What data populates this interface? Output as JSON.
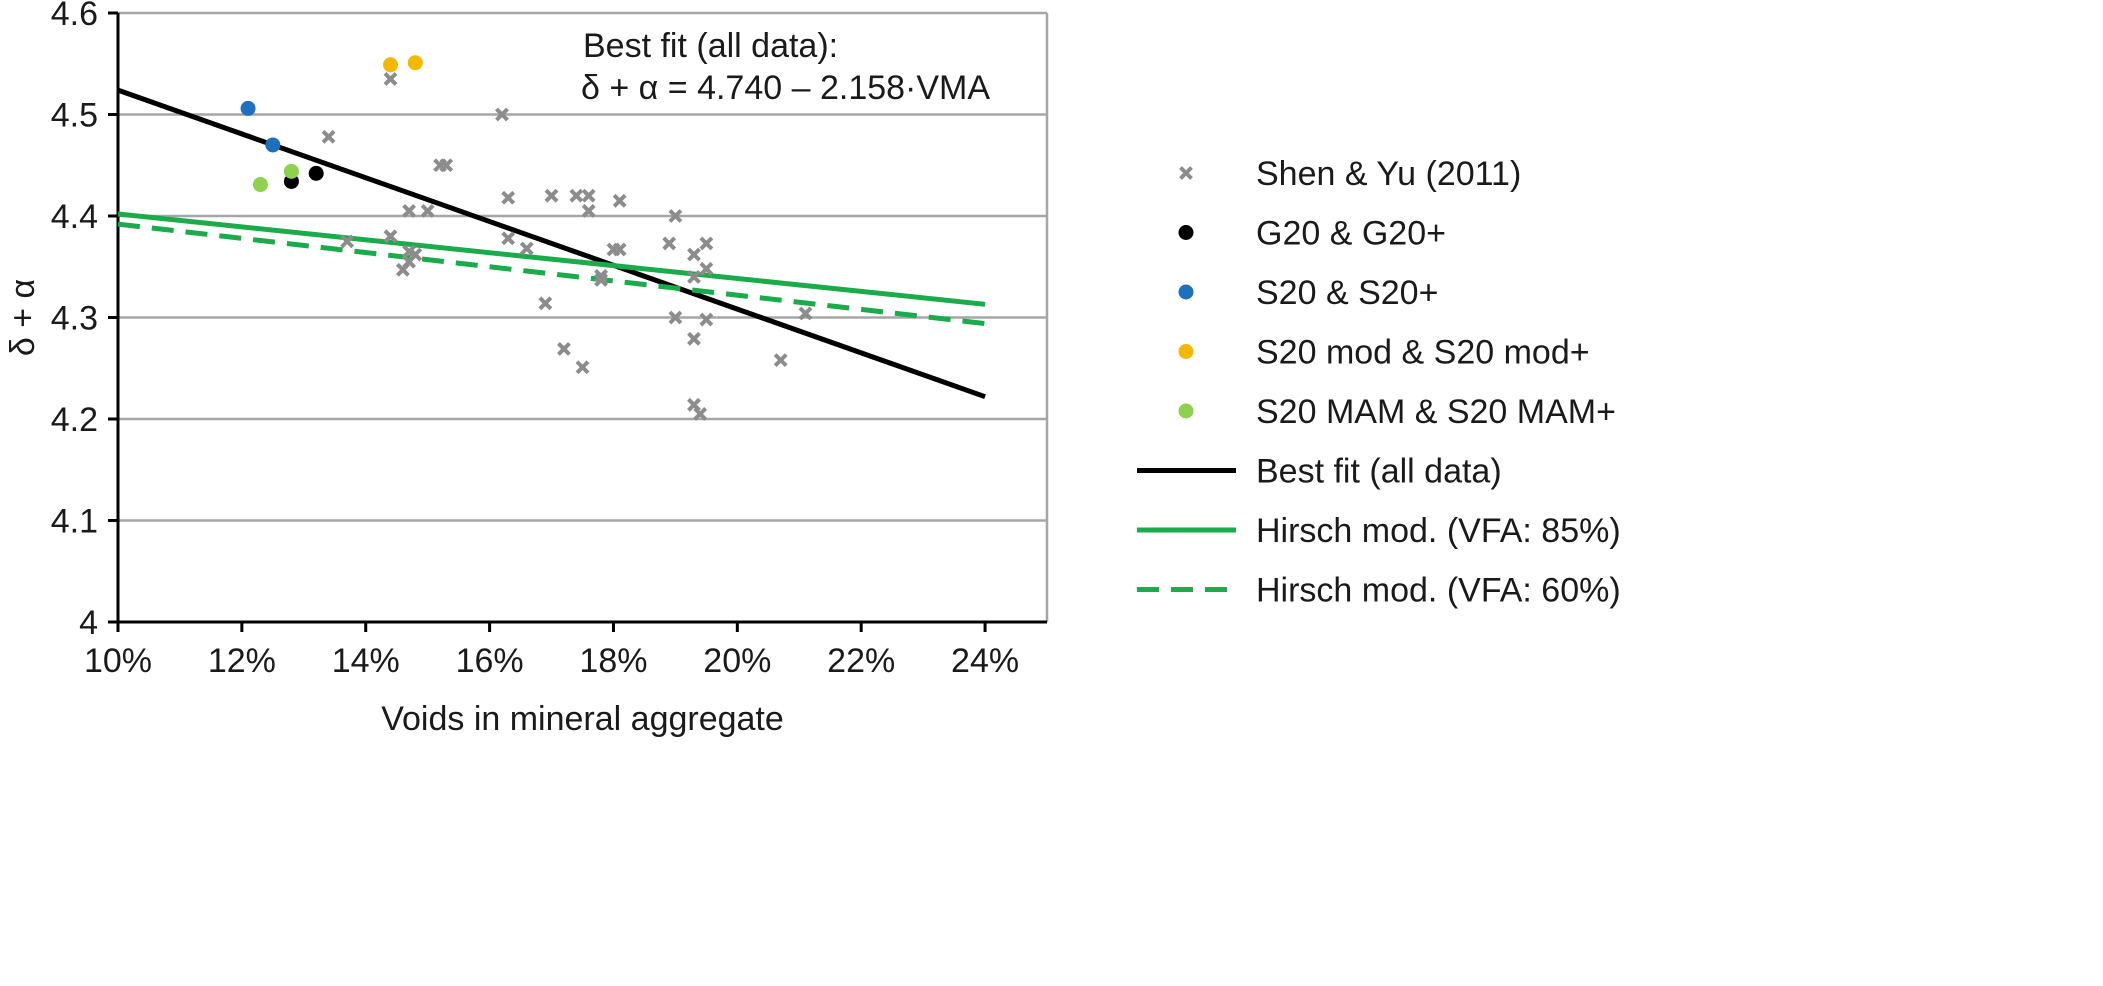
{
  "chart_data": {
    "type": "scatter",
    "xlabel": "Voids in mineral aggregate",
    "ylabel": "δ + α",
    "xlim": [
      0.1,
      0.25
    ],
    "ylim": [
      4.0,
      4.6
    ],
    "x_ticks": [
      0.1,
      0.12,
      0.14,
      0.16,
      0.18,
      0.2,
      0.22,
      0.24
    ],
    "x_tick_labels": [
      "10%",
      "12%",
      "14%",
      "16%",
      "18%",
      "20%",
      "22%",
      "24%"
    ],
    "y_ticks": [
      4.0,
      4.1,
      4.2,
      4.3,
      4.4,
      4.5,
      4.6
    ],
    "y_tick_labels": [
      "4",
      "4.1",
      "4.2",
      "4.3",
      "4.4",
      "4.5",
      "4.6"
    ],
    "grid": "horizontal",
    "legend_position": "right",
    "annotations": [
      "Best fit (all data):",
      "δ + α = 4.740 – 2.158·VMA"
    ],
    "series": [
      {
        "name": "Shen & Yu (2011)",
        "kind": "points",
        "marker": "x",
        "color": "#8c8c8c",
        "points": [
          [
            0.144,
            4.535
          ],
          [
            0.134,
            4.478
          ],
          [
            0.162,
            4.5
          ],
          [
            0.152,
            4.45
          ],
          [
            0.153,
            4.45
          ],
          [
            0.163,
            4.418
          ],
          [
            0.17,
            4.42
          ],
          [
            0.174,
            4.42
          ],
          [
            0.176,
            4.42
          ],
          [
            0.181,
            4.415
          ],
          [
            0.147,
            4.405
          ],
          [
            0.15,
            4.405
          ],
          [
            0.176,
            4.405
          ],
          [
            0.19,
            4.4
          ],
          [
            0.144,
            4.38
          ],
          [
            0.163,
            4.378
          ],
          [
            0.137,
            4.375
          ],
          [
            0.189,
            4.373
          ],
          [
            0.195,
            4.373
          ],
          [
            0.166,
            4.368
          ],
          [
            0.18,
            4.367
          ],
          [
            0.181,
            4.367
          ],
          [
            0.147,
            4.365
          ],
          [
            0.148,
            4.362
          ],
          [
            0.193,
            4.362
          ],
          [
            0.147,
            4.355
          ],
          [
            0.195,
            4.348
          ],
          [
            0.146,
            4.347
          ],
          [
            0.178,
            4.341
          ],
          [
            0.193,
            4.34
          ],
          [
            0.178,
            4.337
          ],
          [
            0.169,
            4.314
          ],
          [
            0.211,
            4.304
          ],
          [
            0.19,
            4.3
          ],
          [
            0.195,
            4.298
          ],
          [
            0.193,
            4.279
          ],
          [
            0.172,
            4.269
          ],
          [
            0.207,
            4.258
          ],
          [
            0.175,
            4.251
          ],
          [
            0.193,
            4.214
          ],
          [
            0.194,
            4.205
          ]
        ]
      },
      {
        "name": "G20 & G20+",
        "kind": "points",
        "marker": "circle",
        "color": "#000000",
        "points": [
          [
            0.128,
            4.434
          ],
          [
            0.132,
            4.442
          ]
        ]
      },
      {
        "name": "S20 & S20+",
        "kind": "points",
        "marker": "circle",
        "color": "#1f6fbf",
        "points": [
          [
            0.121,
            4.506
          ],
          [
            0.125,
            4.47
          ]
        ]
      },
      {
        "name": "S20 mod & S20 mod+",
        "kind": "points",
        "marker": "circle",
        "color": "#f5b800",
        "points": [
          [
            0.144,
            4.549
          ],
          [
            0.148,
            4.551
          ]
        ]
      },
      {
        "name": "S20 MAM & S20 MAM+",
        "kind": "points",
        "marker": "circle",
        "color": "#8fd14f",
        "points": [
          [
            0.123,
            4.431
          ],
          [
            0.128,
            4.444
          ]
        ]
      },
      {
        "name": "Best fit (all data)",
        "kind": "line",
        "style": "solid",
        "color": "#000000",
        "points": [
          [
            0.1,
            4.524
          ],
          [
            0.24,
            4.222
          ]
        ]
      },
      {
        "name": "Hirsch mod. (VFA: 85%)",
        "kind": "line",
        "style": "solid",
        "color": "#1aab4a",
        "points": [
          [
            0.1,
            4.402
          ],
          [
            0.24,
            4.313
          ]
        ]
      },
      {
        "name": "Hirsch mod. (VFA: 60%)",
        "kind": "line",
        "style": "dashed",
        "color": "#1aab4a",
        "points": [
          [
            0.1,
            4.392
          ],
          [
            0.24,
            4.294
          ]
        ]
      }
    ]
  }
}
